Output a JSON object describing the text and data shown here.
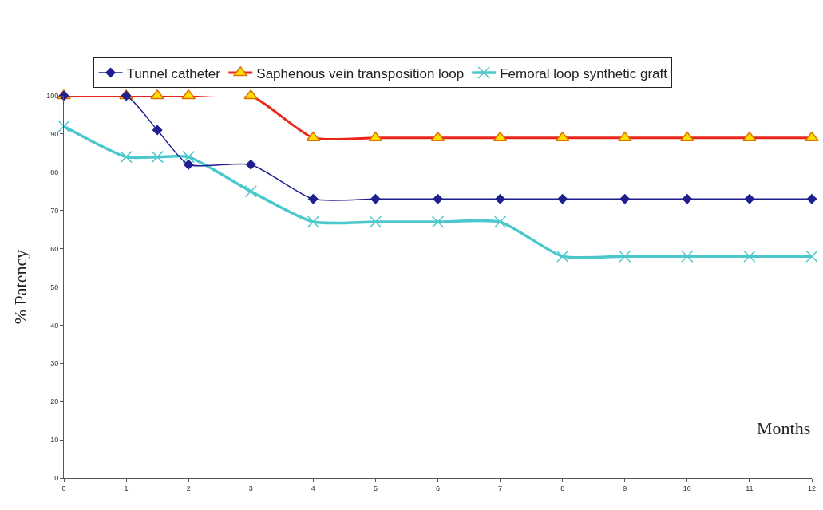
{
  "chart_data": {
    "type": "line",
    "xlabel": "Months",
    "ylabel": "% Patency",
    "x": [
      0,
      1,
      1.5,
      2,
      3,
      4,
      5,
      6,
      7,
      8,
      9,
      10,
      11,
      12
    ],
    "series": [
      {
        "name": "Tunnel catheter",
        "color": "#1f1f8f",
        "marker": "diamond",
        "values": [
          100,
          100,
          91,
          82,
          82,
          73,
          73,
          73,
          73,
          73,
          73,
          73,
          73,
          73
        ]
      },
      {
        "name": "Saphenous vein transposition loop",
        "color": "#e8261c",
        "marker": "triangle",
        "values": [
          100,
          100,
          100,
          100,
          100,
          89,
          89,
          89,
          89,
          89,
          89,
          89,
          89,
          89
        ]
      },
      {
        "name": "Femoral loop synthetic graft",
        "color": "#4cc8cc",
        "marker": "cross",
        "values": [
          92,
          84,
          84,
          84,
          75,
          67,
          67,
          67,
          67,
          58,
          58,
          58,
          58,
          58
        ]
      }
    ],
    "xlim": [
      0,
      12
    ],
    "xticks": [
      0,
      1,
      2,
      3,
      4,
      5,
      6,
      7,
      8,
      9,
      10,
      11,
      12
    ],
    "ylim": [
      0,
      100
    ],
    "yticks": [
      0,
      10,
      20,
      30,
      40,
      50,
      60,
      70,
      80,
      90,
      100
    ],
    "grid": false,
    "legend": "top"
  }
}
